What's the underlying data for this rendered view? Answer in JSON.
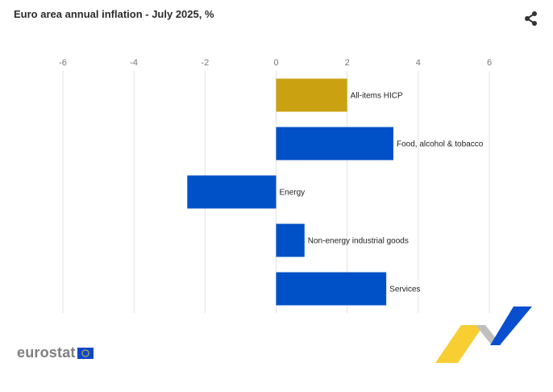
{
  "header": {
    "title": "Euro area annual inflation - July 2025, %"
  },
  "icons": {
    "share": "share-icon",
    "eu_flag": "eu-flag-icon"
  },
  "brand": {
    "name": "eurostat"
  },
  "colors": {
    "highlight": "#caa211",
    "bar": "#0050c8",
    "grid": "#e2e2e2",
    "flag_blue": "#0e47cb",
    "flag_star": "#ffd617",
    "swoosh_yellow": "#f7c91d",
    "swoosh_blue": "#0a4ed0",
    "swoosh_grey": "#bfbfbf"
  },
  "chart_data": {
    "type": "bar",
    "orientation": "horizontal",
    "title": "Euro area annual inflation - July 2025, %",
    "xlim": [
      -6,
      6
    ],
    "ticks": [
      "-6",
      "-4",
      "-2",
      "0",
      "2",
      "4",
      "6"
    ],
    "grid": true,
    "categories": [
      "All-items HICP",
      "Food, alcohol & tobacco",
      "Energy",
      "Non-energy industrial goods",
      "Services"
    ],
    "values": [
      2.0,
      3.3,
      -2.5,
      0.8,
      3.1
    ],
    "highlight_index": 0
  }
}
